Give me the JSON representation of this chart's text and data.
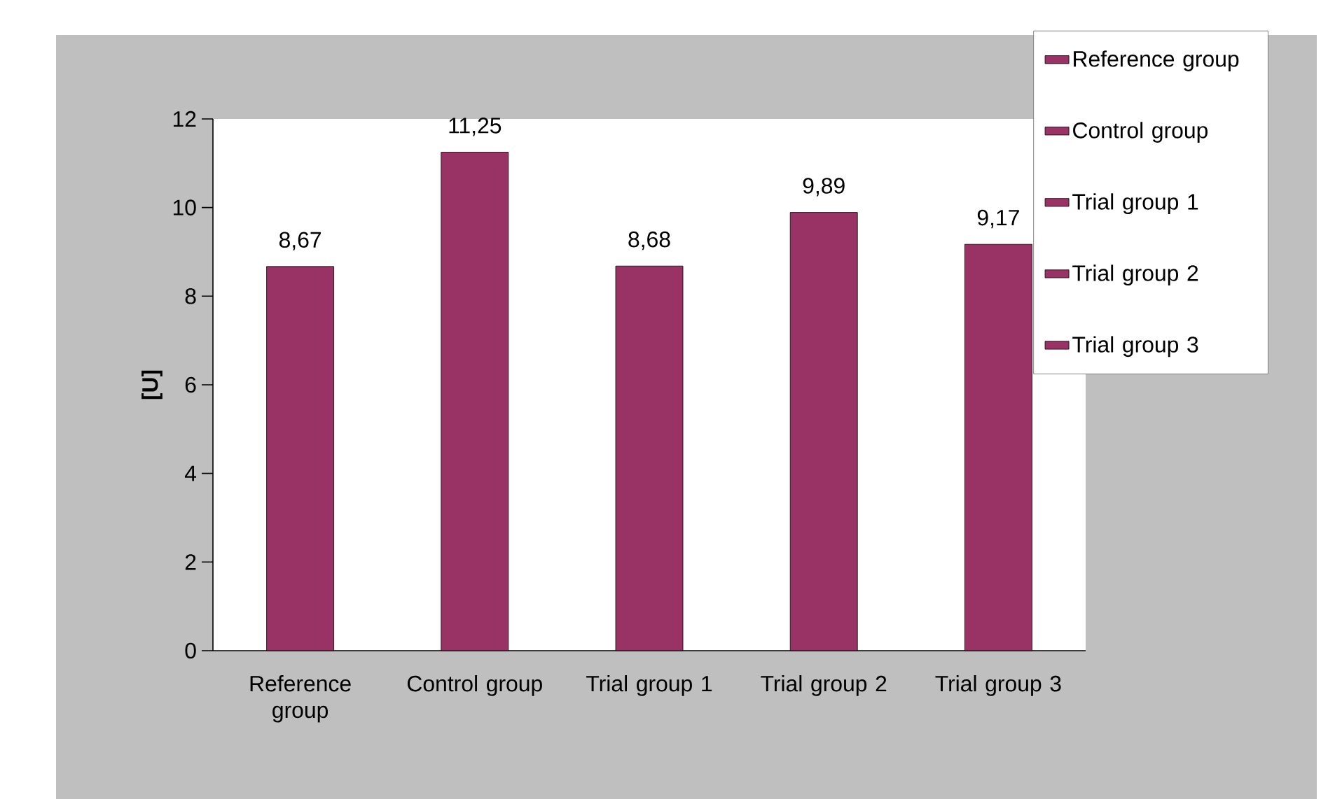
{
  "chart_data": {
    "type": "bar",
    "ylabel": "[U]",
    "categories": [
      "Reference group",
      "Control group",
      "Trial group 1",
      "Trial group 2",
      "Trial group 3"
    ],
    "series": [
      {
        "name": "Reference group",
        "color": "#993366",
        "values": [
          8.67,
          null,
          null,
          null,
          null
        ],
        "value_labels": [
          "8,67",
          null,
          null,
          null,
          null
        ]
      },
      {
        "name": "Control group",
        "color": "#993366",
        "values": [
          null,
          11.25,
          null,
          null,
          null
        ],
        "value_labels": [
          null,
          "11,25",
          null,
          null,
          null
        ]
      },
      {
        "name": "Trial group 1",
        "color": "#993366",
        "values": [
          null,
          null,
          8.68,
          null,
          null
        ],
        "value_labels": [
          null,
          null,
          "8,68",
          null,
          null
        ]
      },
      {
        "name": "Trial group 2",
        "color": "#993366",
        "values": [
          null,
          null,
          null,
          9.89,
          null
        ],
        "value_labels": [
          null,
          null,
          null,
          "9,89",
          null
        ]
      },
      {
        "name": "Trial group 3",
        "color": "#993366",
        "values": [
          null,
          null,
          null,
          null,
          9.17
        ],
        "value_labels": [
          null,
          null,
          null,
          null,
          "9,17"
        ]
      }
    ],
    "ylim": [
      0,
      12
    ],
    "yticks": [
      0,
      2,
      4,
      6,
      8,
      10,
      12
    ],
    "grid": false,
    "legend": "right"
  }
}
